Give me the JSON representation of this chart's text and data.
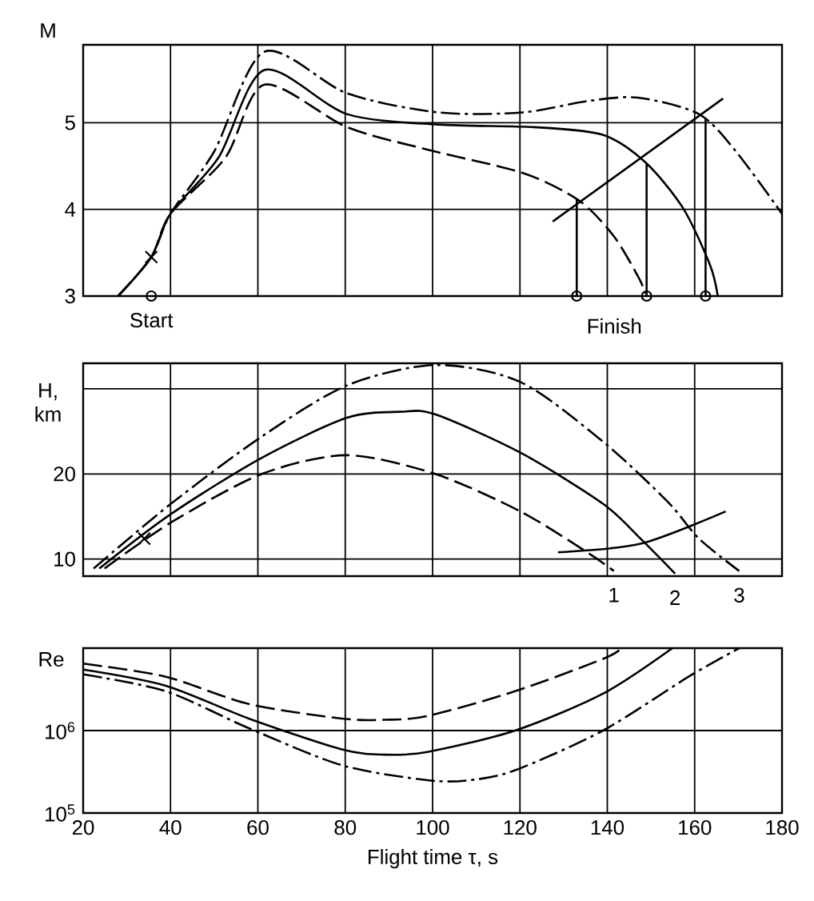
{
  "chart_data": [
    {
      "type": "line",
      "ylabel": "M",
      "xlim": [
        20,
        180
      ],
      "xticks": [
        20,
        40,
        60,
        80,
        100,
        120,
        140,
        160,
        180
      ],
      "ylim": [
        3,
        5.9
      ],
      "yticks": [
        3,
        4,
        5
      ],
      "grid": true,
      "tick_labels": "y",
      "annotations": [
        {
          "text": "Start",
          "x": 35.6,
          "y": 3
        },
        "Finish"
      ],
      "series": [
        {
          "color": "#000000",
          "line_style": "dashed",
          "x": [
            28,
            35.6,
            40,
            52.6,
            61.5,
            80.4,
            98.8,
            120.7,
            133.6,
            141.5,
            147,
            148.8
          ],
          "values": [
            3,
            3.45,
            3.95,
            4.6,
            5.44,
            4.95,
            4.69,
            4.42,
            4.1,
            3.69,
            3.23,
            3.03
          ]
        },
        {
          "color": "#000000",
          "line_style": "solid",
          "x": [
            28,
            35.6,
            40,
            51,
            61.5,
            80.4,
            101.2,
            123.2,
            139,
            148.8,
            157.4,
            163.5,
            165.3
          ],
          "values": [
            3,
            3.45,
            3.95,
            4.6,
            5.61,
            5.1,
            4.98,
            4.95,
            4.86,
            4.54,
            4.01,
            3.36,
            3
          ]
        },
        {
          "color": "#000000",
          "line_style": "dashdot",
          "x": [
            28,
            35.6,
            40,
            49.9,
            61.5,
            80.4,
            101.2,
            120.7,
            135.4,
            147,
            161,
            169.6,
            180
          ],
          "values": [
            3,
            3.45,
            3.95,
            4.66,
            5.82,
            5.34,
            5.12,
            5.12,
            5.25,
            5.29,
            5.1,
            4.66,
            3.95
          ]
        },
        {
          "type": "line",
          "color": "#000000",
          "line_style": "solid",
          "x": [
            127.5,
            166.5
          ],
          "values": [
            3.86,
            5.28
          ]
        },
        {
          "type": "line",
          "color": "#000000",
          "line_style": "solid",
          "x": [
            133,
            133,
            140,
            149,
            149,
            155,
            162.5,
            162.5
          ],
          "values": [
            4.12,
            3,
            null,
            4.53,
            3,
            null,
            5.05,
            3
          ]
        },
        {
          "type": "scatter",
          "color": "#000000",
          "marker": "cross",
          "x": [
            35.6
          ],
          "values": [
            3.45
          ]
        },
        {
          "type": "scatter",
          "color": "#000000",
          "marker": "circle",
          "x": [
            35.6,
            133,
            149,
            162.5
          ],
          "values": [
            3,
            3,
            3,
            3
          ]
        }
      ]
    },
    {
      "type": "line",
      "ylabel": "H, km",
      "xlim": [
        20,
        180
      ],
      "xticks": [
        20,
        40,
        60,
        80,
        100,
        120,
        140,
        160,
        180
      ],
      "ylim": [
        8,
        33
      ],
      "yticks": [
        10,
        20,
        {
          "value": 30,
          "label": null
        }
      ],
      "grid": true,
      "tick_labels": "y",
      "series": [
        {
          "name": "1",
          "color": "#000000",
          "line_style": "dashed",
          "x": [
            24.9,
            40.1,
            60.9,
            80.4,
            100.6,
            120.1,
            135.4,
            141.5
          ],
          "values": [
            8.9,
            14.3,
            20,
            22.2,
            20,
            15.6,
            10.8,
            8.6
          ]
        },
        {
          "name": "2",
          "color": "#000000",
          "line_style": "solid",
          "x": [
            23.7,
            40.1,
            60.9,
            80.4,
            92.6,
            100.6,
            120.1,
            139,
            147.6,
            155.5
          ],
          "values": [
            8.9,
            15.3,
            21.9,
            26.6,
            27.3,
            27,
            22.5,
            16.5,
            12.4,
            8.3
          ]
        },
        {
          "name": "3",
          "color": "#000000",
          "line_style": "dashdot",
          "x": [
            22.4,
            40.1,
            60.9,
            80.4,
            100.6,
            120.1,
            139,
            153.7,
            161,
            170.2
          ],
          "values": [
            8.9,
            16.5,
            24.4,
            30.4,
            32.8,
            30.8,
            23.8,
            16.8,
            12.4,
            8.6
          ]
        },
        {
          "type": "line",
          "color": "#000000",
          "line_style": "solid",
          "x": [
            128.7,
            147.6,
            167.1
          ],
          "values": [
            10.8,
            11.8,
            15.6
          ]
        },
        {
          "type": "scatter",
          "color": "#000000",
          "marker": "cross",
          "x": [
            34
          ],
          "values": [
            12.4
          ]
        }
      ]
    },
    {
      "type": "line",
      "ylabel": "Re",
      "xlabel": "Flight time τ, s",
      "log": "y",
      "xlim": [
        20,
        180
      ],
      "xticks": [
        20,
        40,
        60,
        80,
        100,
        120,
        140,
        160,
        180
      ],
      "ylim": [
        100000,
        10000000
      ],
      "yticks": [
        {
          "value": 100000,
          "label": "10$^{5}$"
        },
        {
          "value": 1000000,
          "label": "10$^{6}$"
        },
        {
          "value": 10000000,
          "label": null
        }
      ],
      "grid": true,
      "series": [
        {
          "color": "#000000",
          "line_style": "dashed",
          "x": [
            20,
            38.9,
            57.9,
            79.2,
            89,
            98.8,
            118.9,
            139,
            143.3
          ],
          "values": [
            6500000,
            4500000,
            2100000,
            1400000,
            1350000,
            1500000,
            3000000,
            7400000,
            10000000
          ]
        },
        {
          "color": "#000000",
          "line_style": "solid",
          "x": [
            20,
            38.9,
            57.9,
            79.2,
            89,
            98.8,
            118.9,
            139,
            154.9
          ],
          "values": [
            5500000,
            3500000,
            1400000,
            590000,
            510000,
            550000,
            1000000,
            2800000,
            10000000
          ]
        },
        {
          "color": "#000000",
          "line_style": "dashdot",
          "x": [
            20,
            38.9,
            57.9,
            79.2,
            98.8,
            108.5,
            118.9,
            139,
            158.6,
            170.2
          ],
          "values": [
            4800000,
            3000000,
            1070000,
            380000,
            250000,
            250000,
            330000,
            1000000,
            4500000,
            10000000
          ]
        }
      ]
    }
  ]
}
